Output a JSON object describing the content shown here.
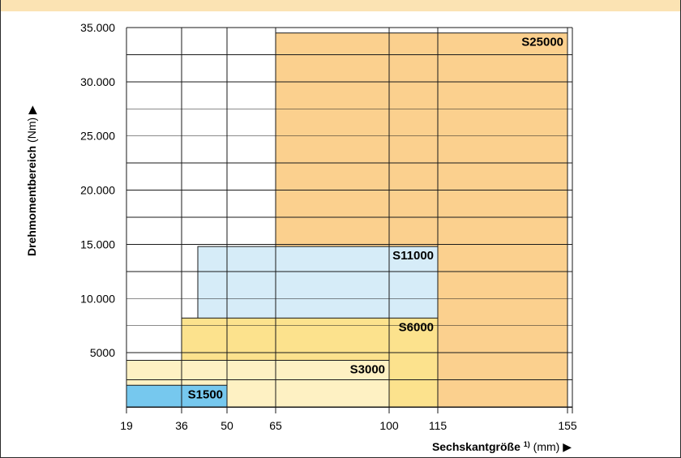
{
  "colors": {
    "top_bar": "#fbe3b3",
    "grid": "#1a1a1a",
    "S25000": "#fbd08e",
    "S11000": "#d6ecf8",
    "S6000": "#fce28d",
    "S3000": "#fef1c3",
    "S1500": "#76c8ee"
  },
  "chart_data": {
    "type": "bar",
    "subtype": "range-rectangles",
    "xlabel": {
      "main": "Sechskantgröße",
      "footnote": "1)",
      "unit": "(mm)",
      "arrow": "▶"
    },
    "ylabel": {
      "main": "Drehmomentbereich",
      "unit": "(Nm)",
      "arrow": "▶"
    },
    "x_ticks": [
      {
        "value": 19,
        "label": "19"
      },
      {
        "value": 36,
        "label": "36"
      },
      {
        "value": 50,
        "label": "50"
      },
      {
        "value": 65,
        "label": "65"
      },
      {
        "value": 100,
        "label": "100"
      },
      {
        "value": 115,
        "label": "115"
      },
      {
        "value": 155,
        "label": "155"
      }
    ],
    "y_ticks": [
      {
        "value": 5000,
        "label": "5000"
      },
      {
        "value": 10000,
        "label": "10.000"
      },
      {
        "value": 15000,
        "label": "15.000"
      },
      {
        "value": 20000,
        "label": "20.000"
      },
      {
        "value": 25000,
        "label": "25.000"
      },
      {
        "value": 30000,
        "label": "30.000"
      },
      {
        "value": 35000,
        "label": "35.000"
      }
    ],
    "ylim": [
      0,
      35000
    ],
    "grid": true,
    "series": [
      {
        "name": "S25000",
        "x_from": 65,
        "x_to": 155,
        "y_min": 0,
        "y_max": 34500,
        "color_key": "S25000"
      },
      {
        "name": "S11000",
        "x_from": 41,
        "x_to": 115,
        "y_min": 8000,
        "y_max": 14800,
        "color_key": "S11000"
      },
      {
        "name": "S6000",
        "x_from": 36,
        "x_to": 115,
        "y_min": 0,
        "y_max": 8200,
        "color_key": "S6000"
      },
      {
        "name": "S3000",
        "x_from": 19,
        "x_to": 100,
        "y_min": 0,
        "y_max": 4300,
        "color_key": "S3000"
      },
      {
        "name": "S1500",
        "x_from": 19,
        "x_to": 50,
        "y_min": 0,
        "y_max": 2000,
        "color_key": "S1500"
      }
    ]
  }
}
